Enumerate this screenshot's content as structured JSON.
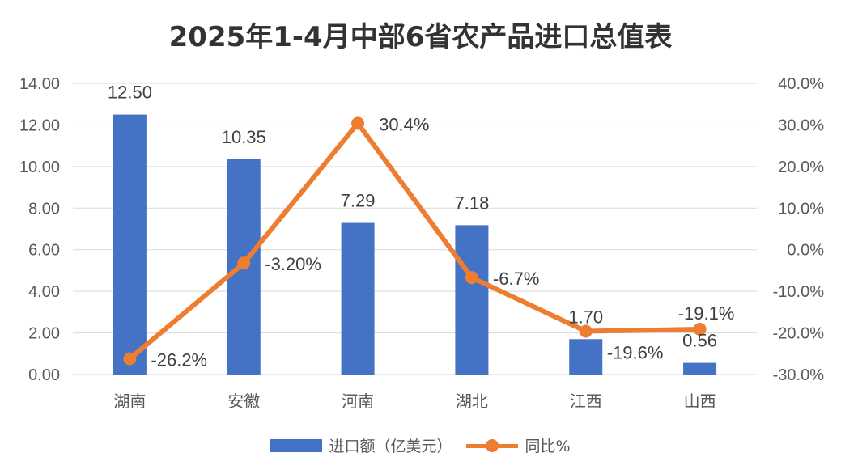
{
  "chart_data": {
    "type": "bar",
    "title": "2025年1-4月中部6省农产品进口总值表",
    "categories": [
      "湖南",
      "安徽",
      "河南",
      "湖北",
      "江西",
      "山西"
    ],
    "series": [
      {
        "name": "进口额（亿美元）",
        "type": "bar",
        "axis": "left",
        "values": [
          12.5,
          10.35,
          7.29,
          7.18,
          1.7,
          0.56
        ],
        "labels": [
          "12.50",
          "10.35",
          "7.29",
          "7.18",
          "1.70",
          "0.56"
        ],
        "color": "#4472C4"
      },
      {
        "name": "同比%",
        "type": "line",
        "axis": "right",
        "values": [
          -26.2,
          -3.2,
          30.4,
          -6.7,
          -19.6,
          -19.1
        ],
        "labels": [
          "-26.2%",
          "-3.20%",
          "30.4%",
          "-6.7%",
          "-19.6%",
          "-19.1%"
        ],
        "color": "#ED7D31"
      }
    ],
    "y_left": {
      "range": [
        0,
        14
      ],
      "ticks": [
        "0.00",
        "2.00",
        "4.00",
        "6.00",
        "8.00",
        "10.00",
        "12.00",
        "14.00"
      ]
    },
    "y_right": {
      "range": [
        -30,
        40
      ],
      "ticks": [
        "-30.0%",
        "-20.0%",
        "-10.0%",
        "0.0%",
        "10.0%",
        "20.0%",
        "30.0%",
        "40.0%"
      ]
    },
    "grid": true,
    "legend_position": "bottom"
  }
}
